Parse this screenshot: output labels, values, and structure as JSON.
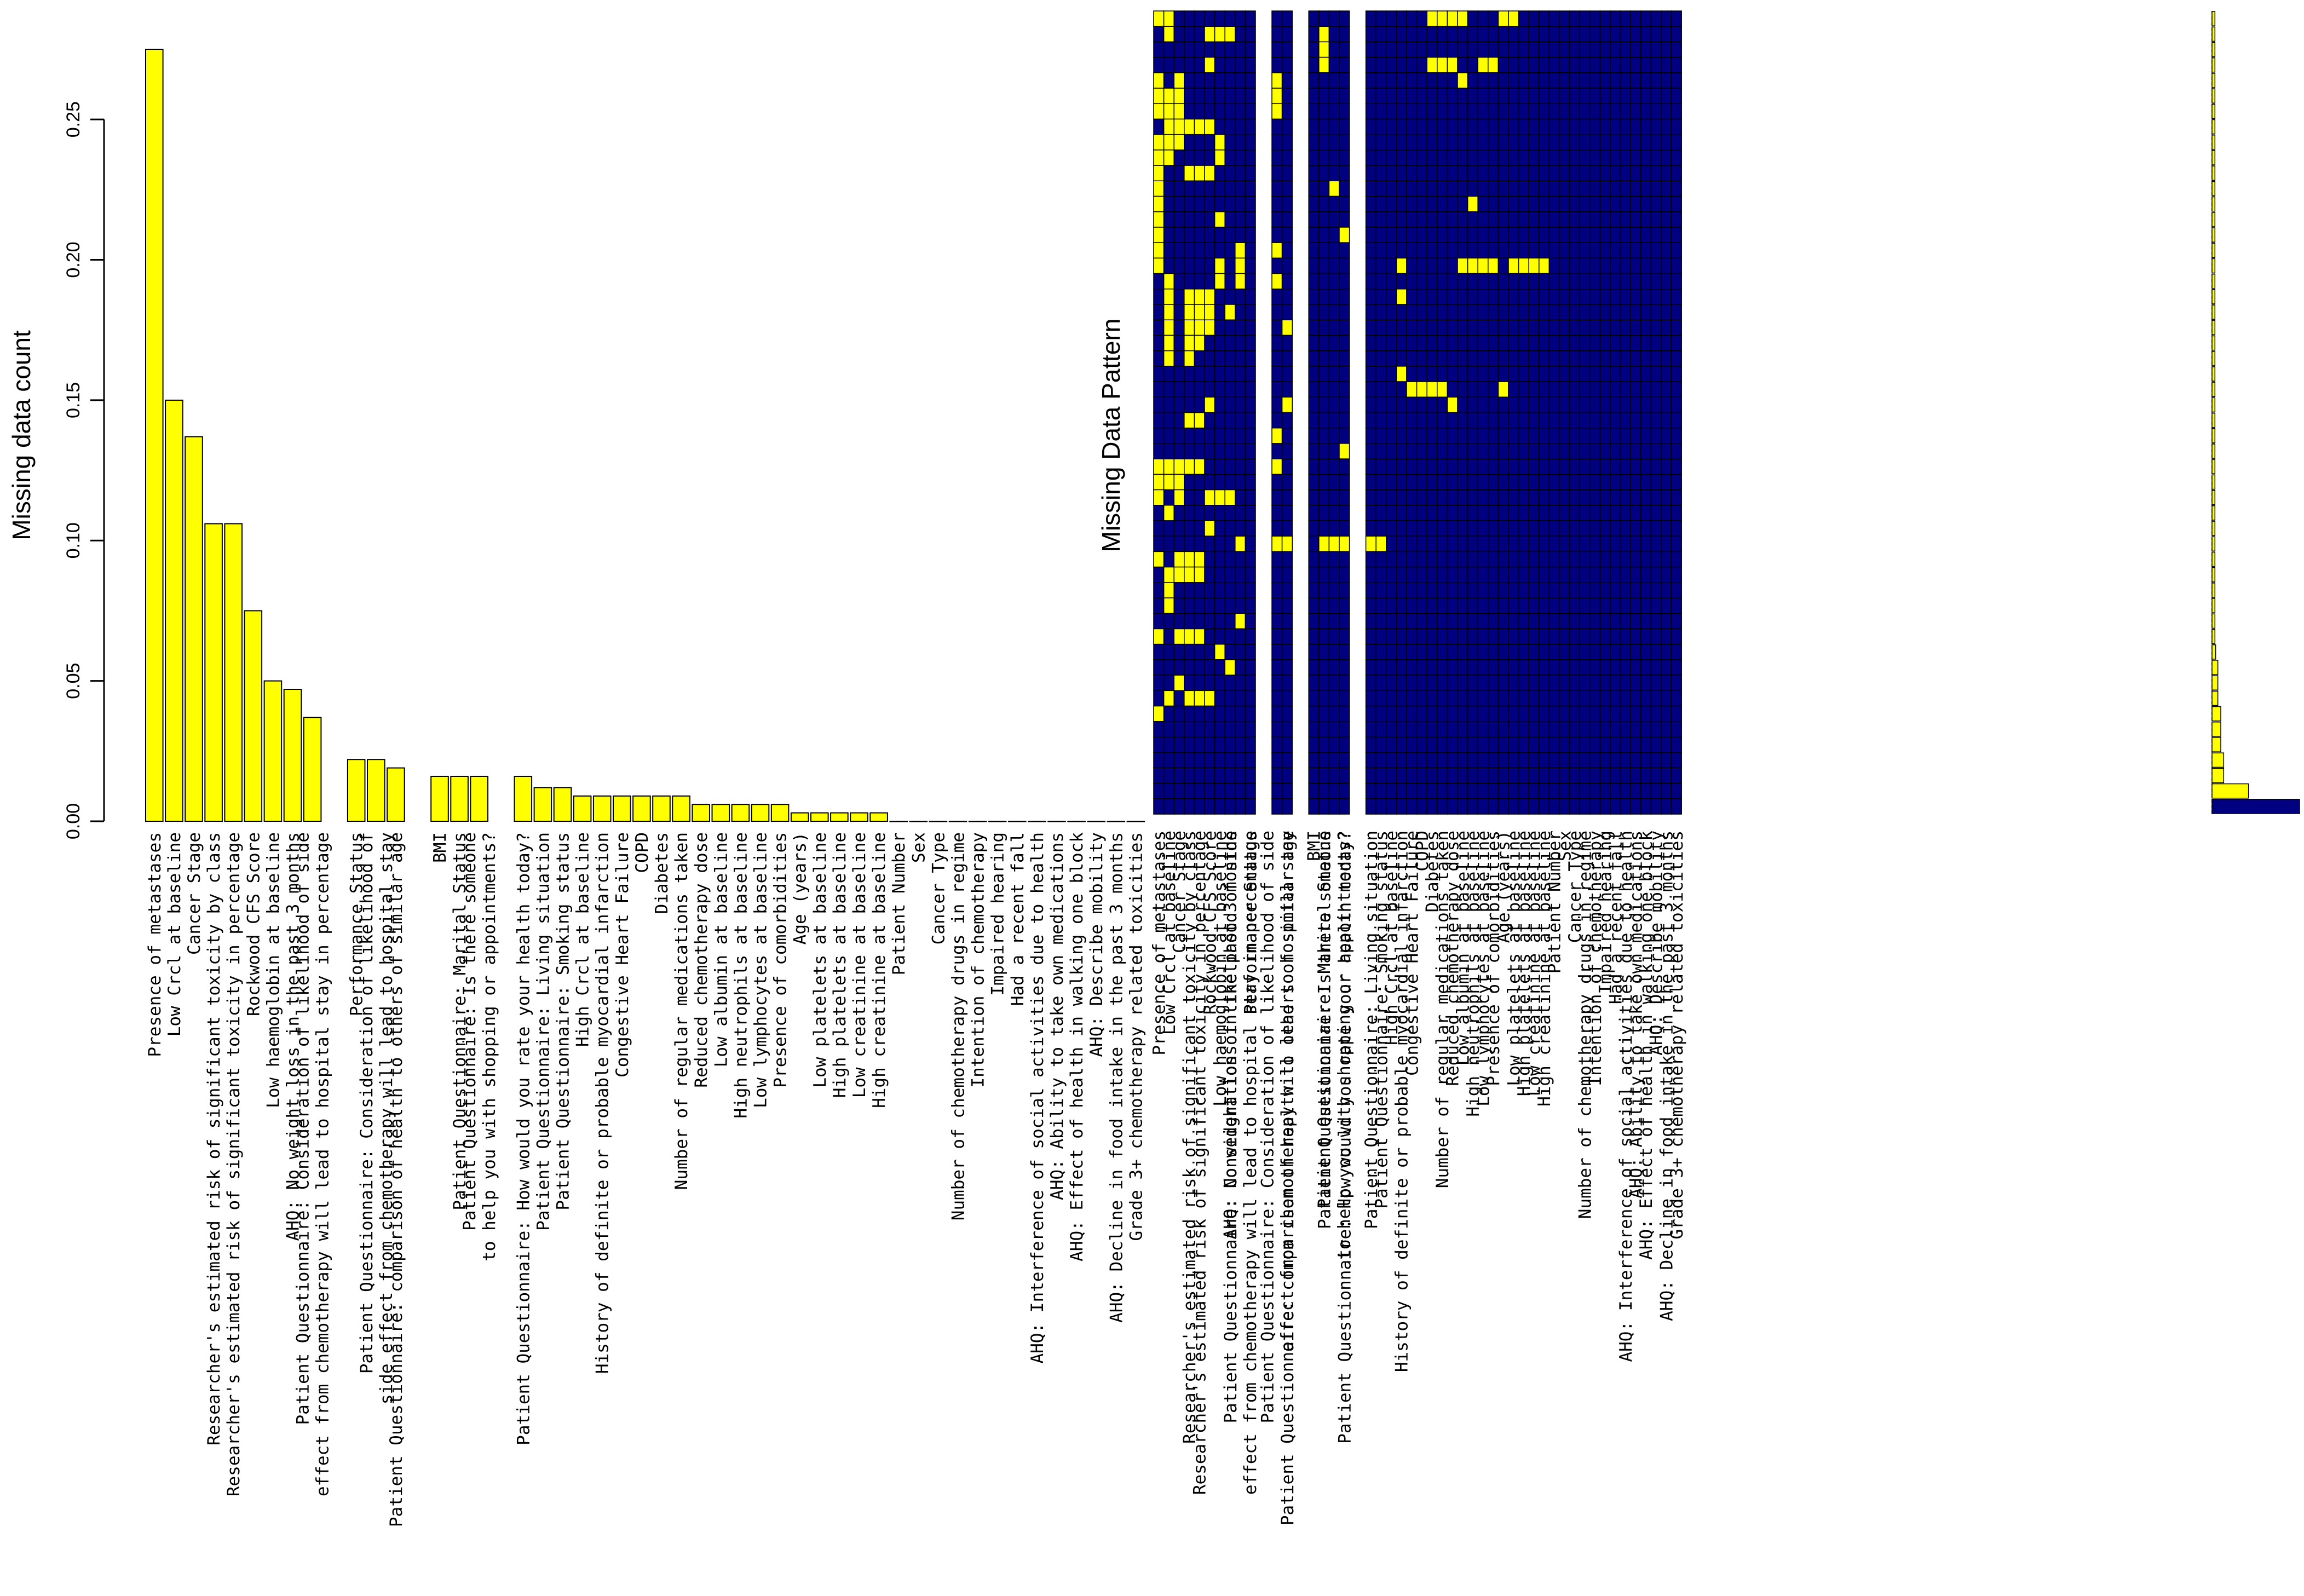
{
  "chart_data": [
    {
      "type": "bar",
      "ylabel": "Missing data count",
      "ylim": [
        0,
        0.275
      ],
      "yticks": [
        0.0,
        0.05,
        0.1,
        0.15,
        0.2,
        0.25
      ],
      "ytick_labels": [
        "0.00",
        "0.05",
        "0.10",
        "0.15",
        "0.20",
        "0.25"
      ],
      "bar_color": "#ffff00",
      "labels": [
        "Presence of metastases",
        "Low Crcl at baseline",
        "Cancer Stage",
        "Researcher's estimated risk of significant toxicity by class",
        "Researcher's estimated risk of significant toxicity in percentage",
        "Rockwood CFS Score",
        "Low haemoglobin at baseline",
        "AHQ: No weight loss in the past 3 months",
        "Patient Questionnaire: Consideration of likelihood of side\neffect from chemotherapy will lead to hospital stay in percentage",
        "Performance Status",
        "Patient Questionnaire: Consideration of likelihood of\nside effect from chemotherapy will lead to hospital stay",
        "Patient Questionnaire: comparison of health to others of similar age",
        "BMI",
        "Patient Questionnaire: Marital Status",
        "Patient Questionnaire: Is there someone\nto help you with shopping or appointments?",
        "Patient Questionnaire: How would you rate your health today?",
        "Patient Questionnaire: Living situation",
        "Patient Questionnaire: Smoking status",
        "High Crcl at baseline",
        "History of definite or probable myocardial infarction",
        "Congestive Heart Failure",
        "COPD",
        "Diabetes",
        "Number of regular medications taken",
        "Reduced chemotherapy dose",
        "Low albumin at baseline",
        "High neutrophils at baseline",
        "Low lymphocytes at baseline",
        "Presence of comorbidities",
        "Age (years)",
        "Low platelets at baseline",
        "High platelets at baseline",
        "Low creatinine at baseline",
        "High creatinine at baseline",
        "Patient Number",
        "Sex",
        "Cancer Type",
        "Number of chemotherapy drugs in regime",
        "Intention of chemotherapy",
        "Impaired hearing",
        "Had a recent fall",
        "AHQ: Interference of social activities due to health",
        "AHQ: Ability to take own medications",
        "AHQ: Effect of health in walking one block",
        "AHQ: Describe mobility",
        "AHQ: Decline in food intake in the past 3 months",
        "Grade 3+ chemotherapy related toxicities"
      ],
      "values": [
        0.275,
        0.15,
        0.137,
        0.106,
        0.106,
        0.075,
        0.05,
        0.047,
        0.037,
        0.022,
        0.022,
        0.019,
        0.016,
        0.016,
        0.016,
        0.016,
        0.012,
        0.012,
        0.009,
        0.009,
        0.009,
        0.009,
        0.009,
        0.009,
        0.006,
        0.006,
        0.006,
        0.006,
        0.006,
        0.003,
        0.003,
        0.003,
        0.003,
        0.003,
        0,
        0,
        0,
        0,
        0,
        0,
        0,
        0,
        0,
        0,
        0,
        0,
        0
      ]
    },
    {
      "type": "heatmap",
      "ylabel": "Missing Data Pattern",
      "missing_color": "#ffff00",
      "observed_color": "#000080",
      "columns": [
        "Presence of metastases",
        "Low Crcl at baseline",
        "Cancer Stage",
        "Researcher's estimated risk of significant toxicity by class",
        "Researcher's estimated risk of significant toxicity in percentage",
        "Rockwood CFS Score",
        "Low haemoglobin at baseline",
        "AHQ: No weight loss in the past 3 months",
        "Patient Questionnaire: Consideration of likelihood of side\neffect from chemotherapy will lead to hospital stay in percentage",
        "Performance Status",
        "Patient Questionnaire: Consideration of likelihood of side\neffect from chemotherapy will lead to hospital stay",
        "Patient Questionnaire: comparison of health to others of similar age",
        "BMI",
        "Patient Questionnaire: Marital Status",
        "Patient Questionnaire: Is there someone\nto help you with shopping or appointments?",
        "Patient Questionnaire: How would you rate your health today?",
        "Patient Questionnaire: Living situation",
        "Patient Questionnaire: Smoking status",
        "High Crcl at baseline",
        "History of definite or probable myocardial infarction",
        "Congestive Heart Failure",
        "COPD",
        "Diabetes",
        "Number of regular medications taken",
        "Reduced chemotherapy dose",
        "Low albumin at baseline",
        "High neutrophils at baseline",
        "Low lymphocytes at baseline",
        "Presence of comorbidities",
        "Age (years)",
        "Low platelets at baseline",
        "High platelets at baseline",
        "Low creatinine at baseline",
        "High creatinine at baseline",
        "Patient Number",
        "Sex",
        "Cancer Type",
        "Number of chemotherapy drugs in regime",
        "Intention of chemotherapy",
        "Impaired hearing",
        "Had a recent fall",
        "AHQ: Interference of social activities due to health",
        "AHQ: Ability to take own medications",
        "AHQ: Effect of health in walking one block",
        "AHQ: Describe mobility",
        "AHQ: Decline in food intake in the past 3 months",
        "Grade 3+ chemotherapy related toxicities"
      ],
      "pattern_count": 52,
      "missing_cells": [
        [
          0,
          0
        ],
        [
          0,
          1
        ],
        [
          0,
          22
        ],
        [
          0,
          23
        ],
        [
          0,
          24
        ],
        [
          0,
          25
        ],
        [
          0,
          29
        ],
        [
          0,
          30
        ],
        [
          1,
          1
        ],
        [
          1,
          5
        ],
        [
          1,
          6
        ],
        [
          1,
          7
        ],
        [
          1,
          13
        ],
        [
          2,
          13
        ],
        [
          3,
          5
        ],
        [
          3,
          13
        ],
        [
          3,
          22
        ],
        [
          3,
          23
        ],
        [
          3,
          24
        ],
        [
          3,
          27
        ],
        [
          3,
          28
        ],
        [
          4,
          0
        ],
        [
          4,
          2
        ],
        [
          4,
          10
        ],
        [
          4,
          25
        ],
        [
          5,
          0
        ],
        [
          5,
          1
        ],
        [
          5,
          2
        ],
        [
          5,
          10
        ],
        [
          6,
          0
        ],
        [
          6,
          1
        ],
        [
          6,
          2
        ],
        [
          6,
          10
        ],
        [
          7,
          1
        ],
        [
          7,
          2
        ],
        [
          7,
          3
        ],
        [
          7,
          4
        ],
        [
          7,
          5
        ],
        [
          8,
          0
        ],
        [
          8,
          1
        ],
        [
          8,
          2
        ],
        [
          8,
          6
        ],
        [
          9,
          0
        ],
        [
          9,
          1
        ],
        [
          9,
          6
        ],
        [
          10,
          0
        ],
        [
          10,
          3
        ],
        [
          10,
          4
        ],
        [
          10,
          5
        ],
        [
          11,
          0
        ],
        [
          11,
          14
        ],
        [
          12,
          0
        ],
        [
          12,
          26
        ],
        [
          13,
          0
        ],
        [
          13,
          6
        ],
        [
          14,
          0
        ],
        [
          14,
          15
        ],
        [
          15,
          0
        ],
        [
          15,
          8
        ],
        [
          15,
          10
        ],
        [
          16,
          0
        ],
        [
          16,
          6
        ],
        [
          16,
          8
        ],
        [
          16,
          19
        ],
        [
          16,
          25
        ],
        [
          16,
          26
        ],
        [
          16,
          27
        ],
        [
          16,
          28
        ],
        [
          16,
          30
        ],
        [
          16,
          31
        ],
        [
          16,
          32
        ],
        [
          16,
          33
        ],
        [
          17,
          1
        ],
        [
          17,
          6
        ],
        [
          17,
          8
        ],
        [
          17,
          10
        ],
        [
          18,
          1
        ],
        [
          18,
          3
        ],
        [
          18,
          4
        ],
        [
          18,
          5
        ],
        [
          18,
          19
        ],
        [
          19,
          1
        ],
        [
          19,
          3
        ],
        [
          19,
          4
        ],
        [
          19,
          5
        ],
        [
          19,
          7
        ],
        [
          20,
          1
        ],
        [
          20,
          3
        ],
        [
          20,
          4
        ],
        [
          20,
          5
        ],
        [
          20,
          11
        ],
        [
          21,
          1
        ],
        [
          21,
          3
        ],
        [
          21,
          4
        ],
        [
          22,
          1
        ],
        [
          22,
          3
        ],
        [
          23,
          19
        ],
        [
          24,
          20
        ],
        [
          24,
          21
        ],
        [
          24,
          22
        ],
        [
          24,
          23
        ],
        [
          24,
          29
        ],
        [
          25,
          5
        ],
        [
          25,
          11
        ],
        [
          25,
          24
        ],
        [
          26,
          3
        ],
        [
          26,
          4
        ],
        [
          27,
          10
        ],
        [
          28,
          15
        ],
        [
          29,
          0
        ],
        [
          29,
          1
        ],
        [
          29,
          2
        ],
        [
          29,
          3
        ],
        [
          29,
          4
        ],
        [
          29,
          10
        ],
        [
          30,
          0
        ],
        [
          30,
          1
        ],
        [
          30,
          2
        ],
        [
          31,
          0
        ],
        [
          31,
          2
        ],
        [
          31,
          5
        ],
        [
          31,
          6
        ],
        [
          31,
          7
        ],
        [
          32,
          1
        ],
        [
          33,
          5
        ],
        [
          34,
          8
        ],
        [
          34,
          10
        ],
        [
          34,
          11
        ],
        [
          34,
          13
        ],
        [
          34,
          14
        ],
        [
          34,
          15
        ],
        [
          34,
          16
        ],
        [
          34,
          17
        ],
        [
          35,
          0
        ],
        [
          35,
          2
        ],
        [
          35,
          3
        ],
        [
          35,
          4
        ],
        [
          36,
          1
        ],
        [
          36,
          2
        ],
        [
          36,
          3
        ],
        [
          36,
          4
        ],
        [
          37,
          1
        ],
        [
          38,
          1
        ],
        [
          39,
          8
        ],
        [
          40,
          0
        ],
        [
          40,
          2
        ],
        [
          40,
          3
        ],
        [
          40,
          4
        ],
        [
          41,
          6
        ],
        [
          42,
          7
        ],
        [
          43,
          2
        ],
        [
          44,
          1
        ],
        [
          44,
          3
        ],
        [
          44,
          4
        ],
        [
          44,
          5
        ],
        [
          45,
          0
        ]
      ],
      "pattern_frequencies": [
        0.004,
        0.004,
        0.004,
        0.004,
        0.004,
        0.004,
        0.004,
        0.004,
        0.004,
        0.004,
        0.004,
        0.004,
        0.004,
        0.004,
        0.004,
        0.004,
        0.004,
        0.004,
        0.004,
        0.004,
        0.004,
        0.004,
        0.004,
        0.004,
        0.004,
        0.004,
        0.004,
        0.004,
        0.004,
        0.004,
        0.004,
        0.004,
        0.004,
        0.004,
        0.004,
        0.004,
        0.004,
        0.004,
        0.004,
        0.004,
        0.004,
        0.005,
        0.008,
        0.008,
        0.008,
        0.012,
        0.012,
        0.012,
        0.016,
        0.016,
        0.05,
        0.12
      ]
    }
  ]
}
